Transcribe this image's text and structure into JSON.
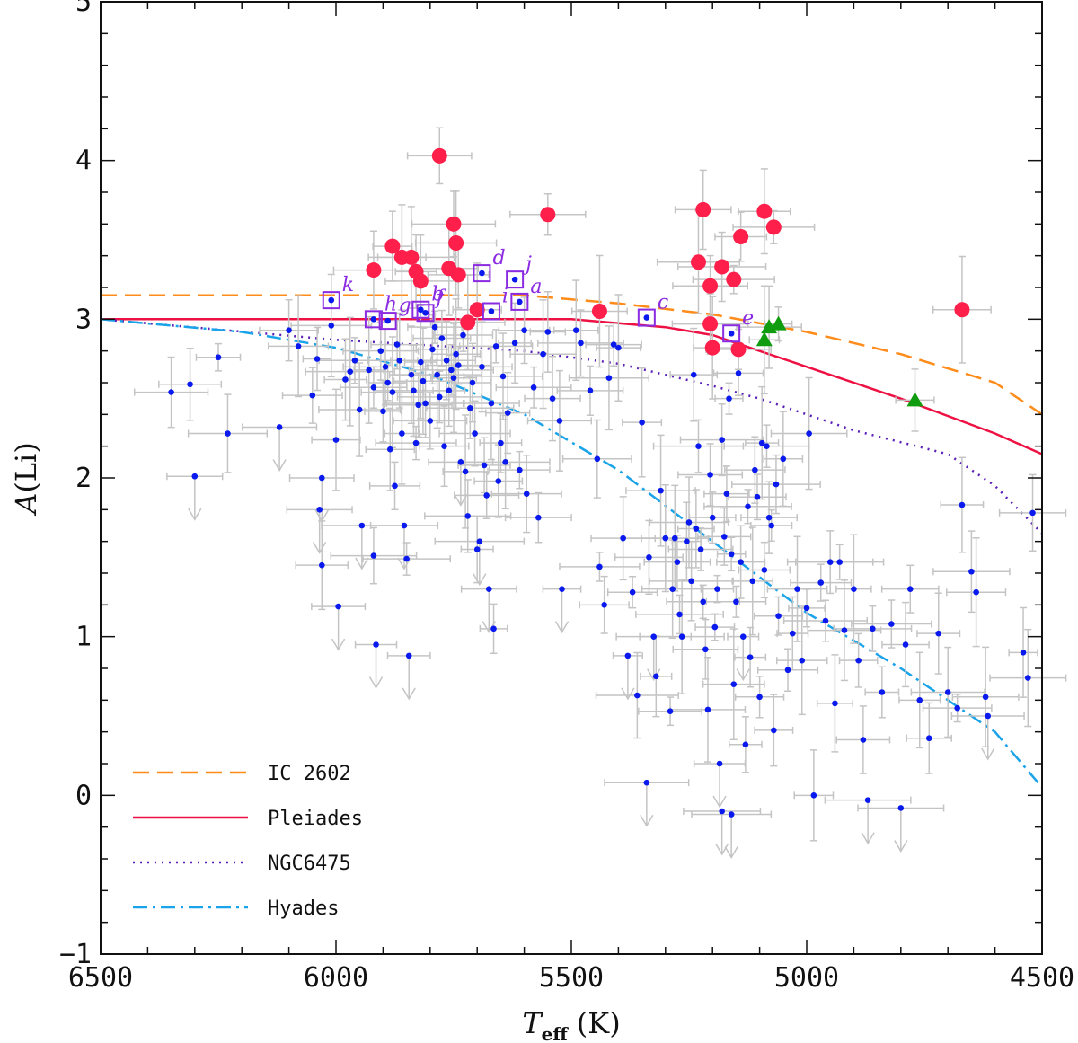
{
  "chart_data": {
    "type": "scatter",
    "title": "",
    "xlabel": "T_eff (K)",
    "xlabel_main": "T",
    "xlabel_sub": "eff",
    "xlabel_unit": "(K)",
    "ylabel": "A(Li)",
    "ylabel_main": "A",
    "ylabel_paren": "(Li)",
    "xlim": [
      6500,
      4500
    ],
    "ylim": [
      -1,
      5
    ],
    "xticks": [
      6500,
      6000,
      5500,
      5000,
      4500
    ],
    "yticks": [
      -1,
      0,
      1,
      2,
      3,
      4,
      5
    ],
    "colors": {
      "ic2602": "#ff8c1a",
      "pleiades": "#ee1144",
      "ngc6475": "#5a1fb8",
      "hyades": "#1aa3e8",
      "red_points": "#ff1f4b",
      "blue_points": "#0a1aee",
      "green_points": "#0f9d0f",
      "annotation": "#8a2be2",
      "errorbar": "#c4c4c4"
    },
    "legend": {
      "position": "bottom-left",
      "entries": [
        {
          "key": "ic2602",
          "label": "IC 2602",
          "style": "dashed"
        },
        {
          "key": "pleiades",
          "label": "Pleiades",
          "style": "solid"
        },
        {
          "key": "ngc6475",
          "label": "NGC6475",
          "style": "dotted"
        },
        {
          "key": "hyades",
          "label": "Hyades",
          "style": "dashdot"
        }
      ]
    },
    "curves": [
      {
        "key": "ic2602",
        "x": [
          6500,
          6000,
          5600,
          5400,
          5200,
          5000,
          4800,
          4600,
          4500
        ],
        "y": [
          3.15,
          3.15,
          3.15,
          3.1,
          3.03,
          2.92,
          2.78,
          2.6,
          2.4
        ]
      },
      {
        "key": "pleiades",
        "x": [
          6500,
          6000,
          5500,
          5300,
          5200,
          5100,
          5000,
          4800,
          4600,
          4500
        ],
        "y": [
          3.0,
          3.0,
          3.0,
          2.95,
          2.9,
          2.8,
          2.7,
          2.5,
          2.28,
          2.15
        ]
      },
      {
        "key": "ngc6475",
        "x": [
          6500,
          6000,
          5600,
          5400,
          5300,
          5200,
          5100,
          5000,
          4900,
          4700,
          4600,
          4500
        ],
        "y": [
          3.0,
          2.87,
          2.8,
          2.72,
          2.65,
          2.58,
          2.5,
          2.4,
          2.3,
          2.15,
          1.95,
          1.65
        ]
      },
      {
        "key": "hyades",
        "x": [
          6500,
          6200,
          6000,
          5800,
          5600,
          5400,
          5200,
          5000,
          4800,
          4600,
          4500
        ],
        "y": [
          3.0,
          2.92,
          2.82,
          2.65,
          2.4,
          2.05,
          1.6,
          1.15,
          0.8,
          0.4,
          0.05
        ]
      }
    ],
    "red_points": [
      {
        "x": 5920,
        "y": 3.31
      },
      {
        "x": 5880,
        "y": 3.46
      },
      {
        "x": 5860,
        "y": 3.39
      },
      {
        "x": 5840,
        "y": 3.39
      },
      {
        "x": 5830,
        "y": 3.3
      },
      {
        "x": 5820,
        "y": 3.24
      },
      {
        "x": 5780,
        "y": 4.03
      },
      {
        "x": 5760,
        "y": 3.32
      },
      {
        "x": 5750,
        "y": 3.6
      },
      {
        "x": 5745,
        "y": 3.48
      },
      {
        "x": 5740,
        "y": 3.28
      },
      {
        "x": 5720,
        "y": 2.98
      },
      {
        "x": 5700,
        "y": 3.06
      },
      {
        "x": 5550,
        "y": 3.66
      },
      {
        "x": 5440,
        "y": 3.05
      },
      {
        "x": 5230,
        "y": 3.36
      },
      {
        "x": 5220,
        "y": 3.69
      },
      {
        "x": 5205,
        "y": 2.97
      },
      {
        "x": 5205,
        "y": 3.21
      },
      {
        "x": 5200,
        "y": 2.82
      },
      {
        "x": 5180,
        "y": 3.33
      },
      {
        "x": 5155,
        "y": 3.25
      },
      {
        "x": 5145,
        "y": 2.81
      },
      {
        "x": 5140,
        "y": 3.52
      },
      {
        "x": 5090,
        "y": 3.68
      },
      {
        "x": 5070,
        "y": 3.58
      },
      {
        "x": 4670,
        "y": 3.06
      }
    ],
    "green_points": [
      {
        "x": 5080,
        "y": 2.95
      },
      {
        "x": 5060,
        "y": 2.97
      },
      {
        "x": 5090,
        "y": 2.87
      },
      {
        "x": 4770,
        "y": 2.49
      }
    ],
    "annotated_points": [
      {
        "label": "a",
        "x": 5610,
        "y": 3.11
      },
      {
        "label": "b",
        "x": 5820,
        "y": 3.06
      },
      {
        "label": "c",
        "x": 5340,
        "y": 3.01
      },
      {
        "label": "d",
        "x": 5690,
        "y": 3.29
      },
      {
        "label": "e",
        "x": 5160,
        "y": 2.91
      },
      {
        "label": "f",
        "x": 5810,
        "y": 3.04
      },
      {
        "label": "g",
        "x": 5890,
        "y": 2.99
      },
      {
        "label": "h",
        "x": 5920,
        "y": 3.0
      },
      {
        "label": "i",
        "x": 5670,
        "y": 3.05
      },
      {
        "label": "j",
        "x": 5620,
        "y": 3.25
      },
      {
        "label": "k",
        "x": 6010,
        "y": 3.12
      }
    ],
    "blue_points": [
      {
        "x": 6350,
        "y": 2.54
      },
      {
        "x": 6310,
        "y": 2.59
      },
      {
        "x": 6300,
        "y": 2.01,
        "upper": true
      },
      {
        "x": 6250,
        "y": 2.76
      },
      {
        "x": 6230,
        "y": 2.28
      },
      {
        "x": 6120,
        "y": 2.32,
        "upper": true
      },
      {
        "x": 6100,
        "y": 2.93
      },
      {
        "x": 6080,
        "y": 2.83
      },
      {
        "x": 6050,
        "y": 2.52
      },
      {
        "x": 6040,
        "y": 2.75
      },
      {
        "x": 6030,
        "y": 2.0,
        "upper": true
      },
      {
        "x": 6035,
        "y": 1.8,
        "upper": true
      },
      {
        "x": 6030,
        "y": 1.45
      },
      {
        "x": 6010,
        "y": 2.96
      },
      {
        "x": 6000,
        "y": 2.24
      },
      {
        "x": 5995,
        "y": 1.19,
        "upper": true
      },
      {
        "x": 5980,
        "y": 2.62
      },
      {
        "x": 5970,
        "y": 2.67
      },
      {
        "x": 5960,
        "y": 2.74
      },
      {
        "x": 5950,
        "y": 2.43
      },
      {
        "x": 5945,
        "y": 1.7,
        "upper": true
      },
      {
        "x": 5930,
        "y": 2.68
      },
      {
        "x": 5920,
        "y": 2.57
      },
      {
        "x": 5920,
        "y": 1.51
      },
      {
        "x": 5915,
        "y": 0.95,
        "upper": true
      },
      {
        "x": 5905,
        "y": 2.8
      },
      {
        "x": 5900,
        "y": 2.42
      },
      {
        "x": 5895,
        "y": 2.7
      },
      {
        "x": 5890,
        "y": 2.6
      },
      {
        "x": 5885,
        "y": 2.18
      },
      {
        "x": 5880,
        "y": 2.54
      },
      {
        "x": 5875,
        "y": 1.95
      },
      {
        "x": 5870,
        "y": 2.84
      },
      {
        "x": 5865,
        "y": 2.74
      },
      {
        "x": 5860,
        "y": 2.28
      },
      {
        "x": 5855,
        "y": 1.7,
        "upper": true
      },
      {
        "x": 5850,
        "y": 1.49
      },
      {
        "x": 5845,
        "y": 0.88,
        "upper": true
      },
      {
        "x": 5840,
        "y": 2.65
      },
      {
        "x": 5835,
        "y": 2.55
      },
      {
        "x": 5830,
        "y": 2.22
      },
      {
        "x": 5825,
        "y": 2.46
      },
      {
        "x": 5820,
        "y": 2.73
      },
      {
        "x": 5815,
        "y": 2.61
      },
      {
        "x": 5810,
        "y": 2.47
      },
      {
        "x": 5800,
        "y": 2.36
      },
      {
        "x": 5795,
        "y": 2.81
      },
      {
        "x": 5790,
        "y": 2.95
      },
      {
        "x": 5785,
        "y": 2.65
      },
      {
        "x": 5780,
        "y": 2.51
      },
      {
        "x": 5775,
        "y": 2.88
      },
      {
        "x": 5770,
        "y": 2.2
      },
      {
        "x": 5765,
        "y": 2.74
      },
      {
        "x": 5760,
        "y": 2.55
      },
      {
        "x": 5755,
        "y": 2.68
      },
      {
        "x": 5750,
        "y": 2.63
      },
      {
        "x": 5745,
        "y": 2.78
      },
      {
        "x": 5740,
        "y": 2.71
      },
      {
        "x": 5735,
        "y": 2.1,
        "upper": true
      },
      {
        "x": 5730,
        "y": 2.9
      },
      {
        "x": 5725,
        "y": 2.04
      },
      {
        "x": 5720,
        "y": 1.76
      },
      {
        "x": 5715,
        "y": 2.44
      },
      {
        "x": 5710,
        "y": 2.6
      },
      {
        "x": 5705,
        "y": 2.28
      },
      {
        "x": 5700,
        "y": 1.55
      },
      {
        "x": 5695,
        "y": 1.6,
        "upper": true
      },
      {
        "x": 5690,
        "y": 2.7
      },
      {
        "x": 5685,
        "y": 2.08
      },
      {
        "x": 5680,
        "y": 1.89
      },
      {
        "x": 5675,
        "y": 1.3,
        "upper": true
      },
      {
        "x": 5670,
        "y": 2.47
      },
      {
        "x": 5665,
        "y": 1.05
      },
      {
        "x": 5660,
        "y": 2.83
      },
      {
        "x": 5655,
        "y": 1.98
      },
      {
        "x": 5650,
        "y": 2.22
      },
      {
        "x": 5645,
        "y": 2.64
      },
      {
        "x": 5640,
        "y": 2.1
      },
      {
        "x": 5635,
        "y": 2.41
      },
      {
        "x": 5620,
        "y": 2.85
      },
      {
        "x": 5610,
        "y": 2.05
      },
      {
        "x": 5600,
        "y": 2.93
      },
      {
        "x": 5595,
        "y": 1.9
      },
      {
        "x": 5580,
        "y": 2.57
      },
      {
        "x": 5570,
        "y": 1.75
      },
      {
        "x": 5560,
        "y": 2.78
      },
      {
        "x": 5550,
        "y": 2.92
      },
      {
        "x": 5540,
        "y": 2.5
      },
      {
        "x": 5525,
        "y": 2.36
      },
      {
        "x": 5520,
        "y": 1.3,
        "upper": true
      },
      {
        "x": 5490,
        "y": 2.93
      },
      {
        "x": 5480,
        "y": 2.85
      },
      {
        "x": 5460,
        "y": 2.55
      },
      {
        "x": 5445,
        "y": 2.12
      },
      {
        "x": 5440,
        "y": 1.44
      },
      {
        "x": 5430,
        "y": 1.2
      },
      {
        "x": 5420,
        "y": 2.63
      },
      {
        "x": 5410,
        "y": 2.84
      },
      {
        "x": 5400,
        "y": 2.82
      },
      {
        "x": 5390,
        "y": 1.62
      },
      {
        "x": 5380,
        "y": 0.88,
        "upper": true
      },
      {
        "x": 5370,
        "y": 1.28
      },
      {
        "x": 5360,
        "y": 0.63
      },
      {
        "x": 5350,
        "y": 2.35
      },
      {
        "x": 5340,
        "y": 0.08,
        "upper": true
      },
      {
        "x": 5335,
        "y": 1.5
      },
      {
        "x": 5325,
        "y": 1.0,
        "upper": true
      },
      {
        "x": 5320,
        "y": 0.75
      },
      {
        "x": 5310,
        "y": 1.92
      },
      {
        "x": 5300,
        "y": 1.62
      },
      {
        "x": 5290,
        "y": 0.53
      },
      {
        "x": 5285,
        "y": 1.3
      },
      {
        "x": 5280,
        "y": 1.62
      },
      {
        "x": 5275,
        "y": 1.47
      },
      {
        "x": 5270,
        "y": 1.14
      },
      {
        "x": 5265,
        "y": 1.0
      },
      {
        "x": 5255,
        "y": 1.6
      },
      {
        "x": 5250,
        "y": 1.72
      },
      {
        "x": 5245,
        "y": 1.35
      },
      {
        "x": 5240,
        "y": 2.65
      },
      {
        "x": 5235,
        "y": 1.68
      },
      {
        "x": 5230,
        "y": 2.2
      },
      {
        "x": 5225,
        "y": 1.55
      },
      {
        "x": 5220,
        "y": 1.22
      },
      {
        "x": 5215,
        "y": 0.92
      },
      {
        "x": 5210,
        "y": 0.54
      },
      {
        "x": 5205,
        "y": 2.02
      },
      {
        "x": 5200,
        "y": 1.75
      },
      {
        "x": 5195,
        "y": 1.06
      },
      {
        "x": 5190,
        "y": 1.3
      },
      {
        "x": 5185,
        "y": 0.2,
        "upper": true
      },
      {
        "x": 5180,
        "y": 2.24
      },
      {
        "x": 5175,
        "y": 1.63
      },
      {
        "x": 5170,
        "y": 1.9
      },
      {
        "x": 5165,
        "y": 2.5
      },
      {
        "x": 5160,
        "y": 1.52
      },
      {
        "x": 5155,
        "y": 0.7
      },
      {
        "x": 5150,
        "y": 1.22
      },
      {
        "x": 5145,
        "y": 2.66
      },
      {
        "x": 5140,
        "y": 1.47
      },
      {
        "x": 5135,
        "y": 1.0,
        "upper": true
      },
      {
        "x": 5130,
        "y": 0.32
      },
      {
        "x": 5125,
        "y": 1.82
      },
      {
        "x": 5120,
        "y": 0.87
      },
      {
        "x": 5115,
        "y": 1.35
      },
      {
        "x": 5110,
        "y": 2.05
      },
      {
        "x": 5105,
        "y": 1.88
      },
      {
        "x": 5100,
        "y": 0.62
      },
      {
        "x": 5095,
        "y": 2.22
      },
      {
        "x": 5090,
        "y": 1.42
      },
      {
        "x": 5085,
        "y": 2.2
      },
      {
        "x": 5080,
        "y": 1.75
      },
      {
        "x": 5075,
        "y": 1.7
      },
      {
        "x": 5070,
        "y": 0.41
      },
      {
        "x": 5065,
        "y": 1.96
      },
      {
        "x": 5060,
        "y": 1.13
      },
      {
        "x": 5050,
        "y": 2.12
      },
      {
        "x": 5040,
        "y": 0.79
      },
      {
        "x": 5030,
        "y": 1.02
      },
      {
        "x": 5020,
        "y": 1.3
      },
      {
        "x": 5010,
        "y": 0.85
      },
      {
        "x": 5000,
        "y": 1.18
      },
      {
        "x": 4995,
        "y": 2.28
      },
      {
        "x": 4985,
        "y": 0.0
      },
      {
        "x": 4970,
        "y": 1.34
      },
      {
        "x": 4960,
        "y": 1.1
      },
      {
        "x": 4950,
        "y": 1.47
      },
      {
        "x": 4940,
        "y": 0.58
      },
      {
        "x": 4930,
        "y": 1.47
      },
      {
        "x": 4920,
        "y": 1.04
      },
      {
        "x": 4900,
        "y": 1.3
      },
      {
        "x": 4890,
        "y": 0.85
      },
      {
        "x": 4880,
        "y": 0.35
      },
      {
        "x": 4860,
        "y": 1.05
      },
      {
        "x": 4840,
        "y": 0.65
      },
      {
        "x": 4820,
        "y": 1.08
      },
      {
        "x": 4800,
        "y": -0.08,
        "upper": true
      },
      {
        "x": 4790,
        "y": 0.95
      },
      {
        "x": 4780,
        "y": 1.3
      },
      {
        "x": 4760,
        "y": 0.6
      },
      {
        "x": 4740,
        "y": 0.36
      },
      {
        "x": 4720,
        "y": 1.02
      },
      {
        "x": 4700,
        "y": 0.65
      },
      {
        "x": 4680,
        "y": 0.55
      },
      {
        "x": 4670,
        "y": 1.83
      },
      {
        "x": 4650,
        "y": 1.41
      },
      {
        "x": 4640,
        "y": 1.28
      },
      {
        "x": 4620,
        "y": 0.62
      },
      {
        "x": 4615,
        "y": 0.5,
        "upper": true
      },
      {
        "x": 4540,
        "y": 0.9
      },
      {
        "x": 4530,
        "y": 0.74
      },
      {
        "x": 4520,
        "y": 1.78
      },
      {
        "x": 4870,
        "y": -0.03,
        "upper": true
      },
      {
        "x": 5160,
        "y": -0.12,
        "upper": true
      },
      {
        "x": 5180,
        "y": -0.1,
        "upper": true
      }
    ]
  }
}
